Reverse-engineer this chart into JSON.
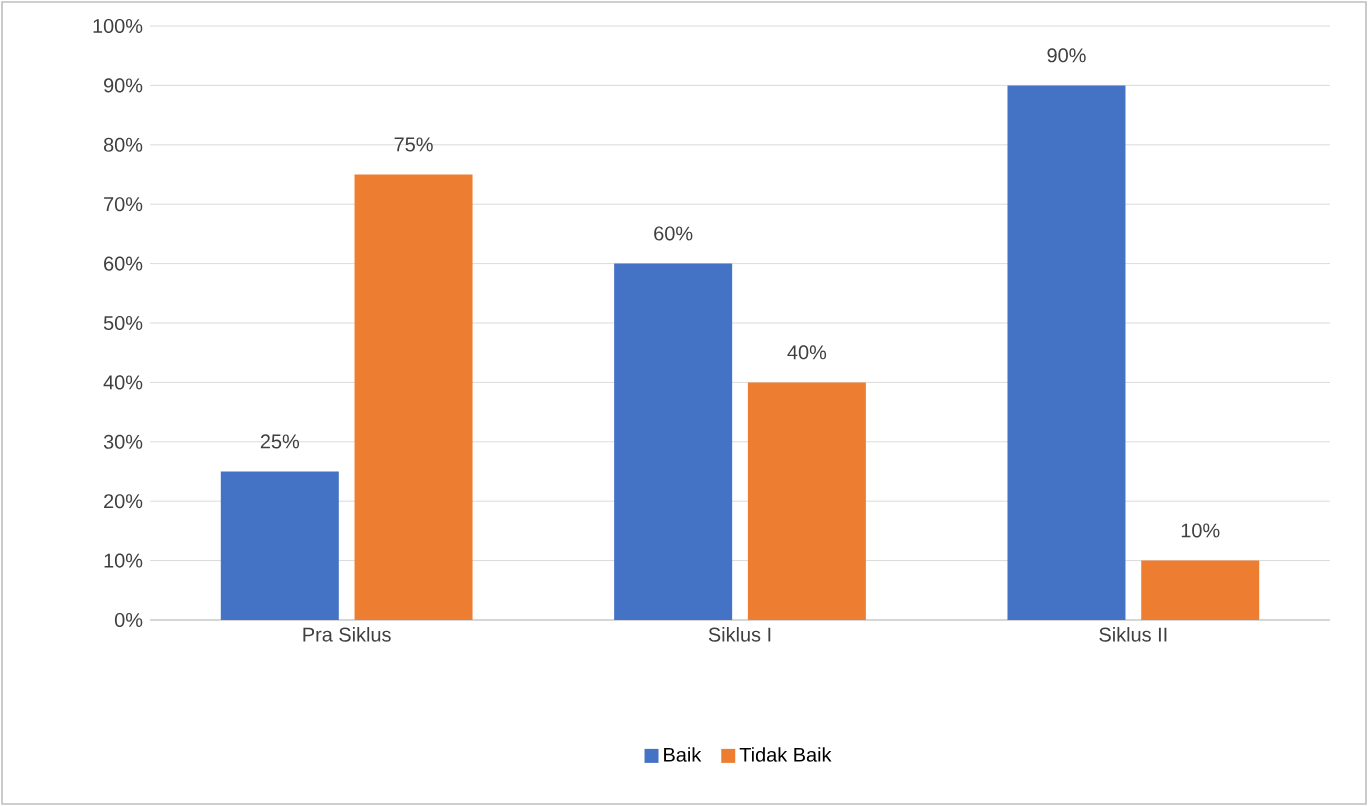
{
  "chart_data": {
    "type": "bar",
    "categories": [
      "Pra Siklus",
      "Siklus I",
      "Siklus II"
    ],
    "series": [
      {
        "name": "Baik",
        "color": "#4472c4",
        "values": [
          25,
          60,
          90
        ],
        "value_labels": [
          "25%",
          "60%",
          "90%"
        ]
      },
      {
        "name": "Tidak Baik",
        "color": "#ed7d31",
        "values": [
          75,
          40,
          10
        ],
        "value_labels": [
          "75%",
          "40%",
          "10%"
        ]
      }
    ],
    "ylim": [
      0,
      100
    ],
    "yticks": [
      {
        "value": 0,
        "label": "0%"
      },
      {
        "value": 10,
        "label": "10%"
      },
      {
        "value": 20,
        "label": "20%"
      },
      {
        "value": 30,
        "label": "30%"
      },
      {
        "value": 40,
        "label": "40%"
      },
      {
        "value": 50,
        "label": "50%"
      },
      {
        "value": 60,
        "label": "60%"
      },
      {
        "value": 70,
        "label": "70%"
      },
      {
        "value": 80,
        "label": "80%"
      },
      {
        "value": 90,
        "label": "90%"
      },
      {
        "value": 100,
        "label": "100%"
      }
    ],
    "grid": "y",
    "legend": "bottom"
  }
}
